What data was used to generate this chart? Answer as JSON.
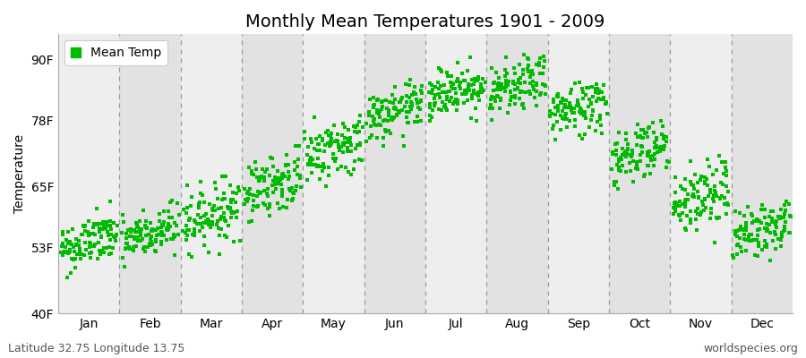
{
  "title": "Monthly Mean Temperatures 1901 - 2009",
  "ylabel": "Temperature",
  "xlabel": "",
  "ytick_labels": [
    "40F",
    "53F",
    "65F",
    "78F",
    "90F"
  ],
  "ytick_values": [
    40,
    53,
    65,
    78,
    90
  ],
  "ylim": [
    40,
    95
  ],
  "xlim": [
    0,
    1340
  ],
  "months": [
    "Jan",
    "Feb",
    "Mar",
    "Apr",
    "May",
    "Jun",
    "Jul",
    "Aug",
    "Sep",
    "Oct",
    "Nov",
    "Dec"
  ],
  "month_means": [
    54.0,
    55.5,
    59.5,
    65.5,
    72.5,
    79.5,
    84.0,
    84.5,
    80.5,
    72.0,
    63.0,
    56.5
  ],
  "month_stds": [
    2.5,
    2.5,
    3.0,
    3.0,
    3.0,
    2.5,
    2.5,
    2.5,
    2.8,
    3.0,
    3.5,
    2.5
  ],
  "month_mins": [
    47.0,
    48.0,
    51.0,
    58.0,
    65.0,
    73.0,
    78.0,
    78.0,
    73.0,
    64.0,
    54.0,
    49.0
  ],
  "month_maxs": [
    62.0,
    63.0,
    67.0,
    73.0,
    80.0,
    86.0,
    90.5,
    91.0,
    87.0,
    80.0,
    71.0,
    63.5
  ],
  "n_years": 109,
  "dot_color": "#00bb00",
  "dot_size": 7,
  "dot_alpha": 1.0,
  "background_color_light": "#eeeeee",
  "background_color_dark": "#e2e2e2",
  "grid_color": "#999999",
  "legend_label": "Mean Temp",
  "footer_left": "Latitude 32.75 Longitude 13.75",
  "footer_right": "worldspecies.org",
  "title_fontsize": 14,
  "axis_fontsize": 10,
  "tick_fontsize": 10,
  "footer_fontsize": 9
}
